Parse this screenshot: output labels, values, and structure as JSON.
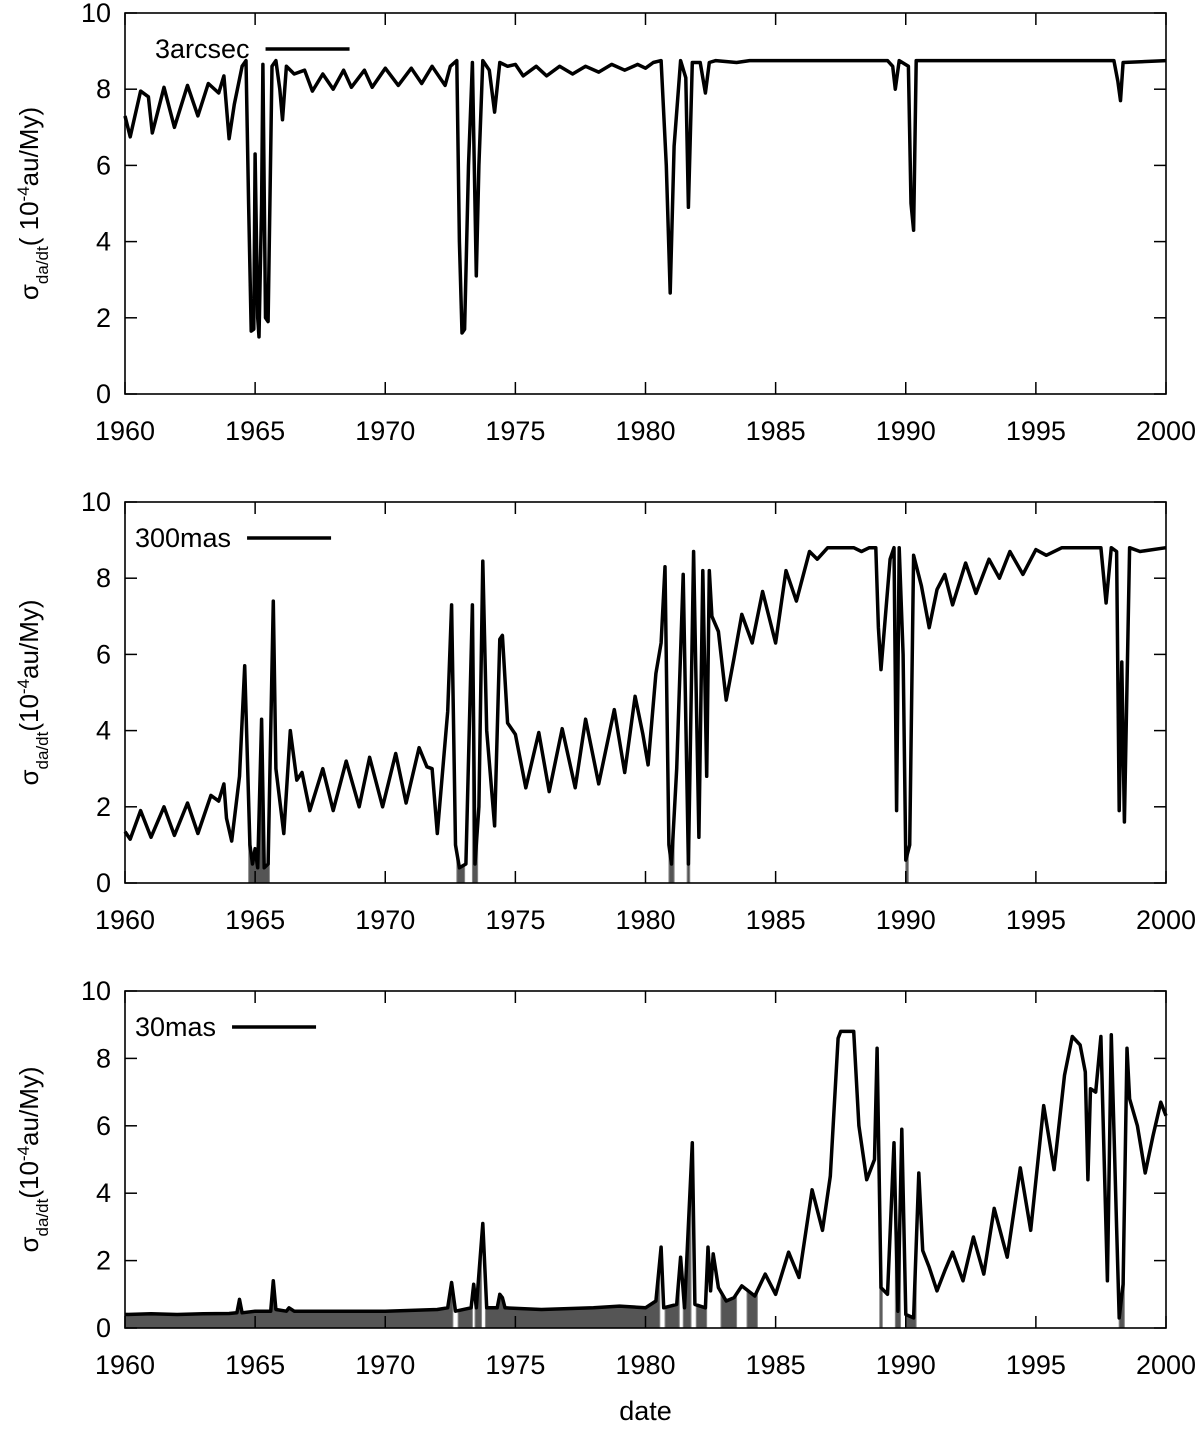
{
  "chart_data": [
    {
      "type": "line",
      "legend": "upper left",
      "ylabel": {
        "base": "σ",
        "sub": "da/dt",
        "mid": "( 10",
        "sup": "-4",
        "tail": "au/My)"
      },
      "xlim": [
        1960,
        2000
      ],
      "ylim": [
        0,
        10
      ],
      "xticks": [
        1960,
        1965,
        1970,
        1975,
        1980,
        1985,
        1990,
        1995,
        2000
      ],
      "yticks": [
        0,
        2,
        4,
        6,
        8,
        10
      ],
      "x": [
        1960,
        1960.2,
        1960.6,
        1960.9,
        1961.05,
        1961.5,
        1961.9,
        1962.4,
        1962.8,
        1963.2,
        1963.6,
        1963.8,
        1964.0,
        1964.2,
        1964.5,
        1964.65,
        1964.75,
        1964.85,
        1964.95,
        1965.0,
        1965.1,
        1965.15,
        1965.25,
        1965.3,
        1965.4,
        1965.5,
        1965.65,
        1965.8,
        1965.95,
        1966.05,
        1966.2,
        1966.5,
        1966.9,
        1967.2,
        1967.6,
        1968.0,
        1968.4,
        1968.7,
        1969.2,
        1969.5,
        1970.0,
        1970.5,
        1971.0,
        1971.4,
        1971.8,
        1972.1,
        1972.3,
        1972.5,
        1972.75,
        1972.85,
        1972.95,
        1973.05,
        1973.2,
        1973.35,
        1973.5,
        1973.6,
        1973.75,
        1974.0,
        1974.2,
        1974.4,
        1974.7,
        1975.0,
        1975.3,
        1975.8,
        1976.2,
        1976.7,
        1977.2,
        1977.7,
        1978.2,
        1978.7,
        1979.2,
        1979.7,
        1980.0,
        1980.3,
        1980.6,
        1980.8,
        1980.95,
        1981.1,
        1981.35,
        1981.55,
        1981.65,
        1981.8,
        1982.1,
        1982.3,
        1982.45,
        1982.7,
        1983.5,
        1984,
        1985,
        1989.3,
        1989.5,
        1989.6,
        1989.75,
        1990.1,
        1990.2,
        1990.3,
        1990.4,
        1991,
        1998.0,
        1998.15,
        1998.25,
        1998.35,
        2000
      ],
      "series": [
        {
          "name": "3arcsec",
          "color": "#000000",
          "values": [
            7.3,
            6.75,
            7.95,
            7.8,
            6.85,
            8.05,
            7.0,
            8.1,
            7.3,
            8.15,
            7.9,
            8.35,
            6.7,
            7.6,
            8.6,
            8.75,
            5.0,
            1.65,
            1.7,
            6.3,
            2.0,
            1.5,
            5.0,
            8.65,
            2.0,
            1.9,
            8.6,
            8.75,
            8.0,
            7.2,
            8.6,
            8.4,
            8.5,
            7.95,
            8.4,
            8.0,
            8.5,
            8.05,
            8.5,
            8.05,
            8.55,
            8.1,
            8.55,
            8.15,
            8.6,
            8.3,
            8.1,
            8.6,
            8.75,
            4.0,
            1.6,
            1.7,
            6.0,
            8.7,
            3.1,
            6.0,
            8.75,
            8.5,
            7.4,
            8.7,
            8.6,
            8.65,
            8.35,
            8.6,
            8.35,
            8.6,
            8.4,
            8.6,
            8.45,
            8.65,
            8.5,
            8.65,
            8.55,
            8.7,
            8.75,
            6.0,
            2.65,
            6.5,
            8.75,
            8.3,
            4.9,
            8.7,
            8.7,
            7.9,
            8.7,
            8.75,
            8.7,
            8.75,
            8.75,
            8.75,
            8.6,
            8.0,
            8.75,
            8.6,
            5.0,
            4.3,
            8.75,
            8.75,
            8.75,
            8.2,
            7.7,
            8.7,
            8.75
          ]
        }
      ]
    },
    {
      "type": "line",
      "legend": "upper left",
      "ylabel": {
        "base": "σ",
        "sub": "da/dt",
        "mid": "(10",
        "sup": "-4",
        "tail": "au/My)"
      },
      "xlim": [
        1960,
        2000
      ],
      "ylim": [
        0,
        10
      ],
      "xticks": [
        1960,
        1965,
        1970,
        1975,
        1980,
        1985,
        1990,
        1995,
        2000
      ],
      "yticks": [
        0,
        2,
        4,
        6,
        8,
        10
      ],
      "x": [
        1960,
        1960.2,
        1960.6,
        1961.0,
        1961.5,
        1961.9,
        1962.4,
        1962.8,
        1963.3,
        1963.6,
        1963.8,
        1963.9,
        1964.1,
        1964.4,
        1964.6,
        1964.8,
        1964.9,
        1965.0,
        1965.1,
        1965.25,
        1965.35,
        1965.5,
        1965.7,
        1965.8,
        1966.1,
        1966.35,
        1966.6,
        1966.8,
        1967.1,
        1967.6,
        1968.0,
        1968.5,
        1969.0,
        1969.4,
        1969.9,
        1970.4,
        1970.8,
        1971.3,
        1971.6,
        1971.8,
        1972.0,
        1972.4,
        1972.55,
        1972.7,
        1972.85,
        1973.1,
        1973.35,
        1973.45,
        1973.6,
        1973.75,
        1973.9,
        1974.2,
        1974.4,
        1974.5,
        1974.7,
        1975.0,
        1975.4,
        1975.9,
        1976.3,
        1976.8,
        1977.3,
        1977.7,
        1978.2,
        1978.8,
        1979.2,
        1979.6,
        1979.9,
        1980.1,
        1980.4,
        1980.6,
        1980.75,
        1980.9,
        1981.0,
        1981.2,
        1981.45,
        1981.65,
        1981.85,
        1982.05,
        1982.2,
        1982.35,
        1982.45,
        1982.55,
        1982.8,
        1983.0,
        1983.1,
        1983.4,
        1983.7,
        1984.1,
        1984.5,
        1985.0,
        1985.4,
        1985.8,
        1986.3,
        1986.6,
        1987.0,
        1988.0,
        1988.3,
        1988.6,
        1988.85,
        1988.95,
        1989.05,
        1989.4,
        1989.55,
        1989.65,
        1989.75,
        1989.9,
        1990.0,
        1990.15,
        1990.3,
        1990.6,
        1990.9,
        1991.2,
        1991.5,
        1991.8,
        1992.3,
        1992.7,
        1993.2,
        1993.6,
        1994.0,
        1994.5,
        1995.0,
        1995.4,
        1996.0,
        1997.5,
        1997.7,
        1997.9,
        1998.1,
        1998.2,
        1998.3,
        1998.4,
        1998.6,
        1999,
        2000
      ],
      "series": [
        {
          "name": "300mas",
          "color": "#000000",
          "values": [
            1.35,
            1.15,
            1.9,
            1.2,
            2.0,
            1.25,
            2.1,
            1.3,
            2.3,
            2.15,
            2.6,
            1.7,
            1.1,
            2.8,
            5.7,
            1.0,
            0.5,
            0.9,
            0.4,
            4.3,
            0.4,
            0.5,
            7.4,
            3.0,
            1.3,
            4.0,
            2.7,
            2.9,
            1.9,
            3.0,
            1.9,
            3.2,
            2.0,
            3.3,
            2.0,
            3.4,
            2.1,
            3.55,
            3.05,
            3.0,
            1.3,
            4.5,
            7.3,
            1.0,
            0.4,
            0.5,
            7.3,
            0.5,
            2.0,
            8.45,
            4.0,
            1.5,
            6.4,
            6.5,
            4.2,
            3.9,
            2.5,
            3.95,
            2.4,
            4.05,
            2.5,
            4.3,
            2.6,
            4.55,
            2.9,
            4.9,
            3.9,
            3.1,
            5.5,
            6.3,
            8.3,
            1.0,
            0.5,
            3.0,
            8.1,
            0.5,
            8.7,
            1.2,
            8.2,
            2.8,
            8.2,
            7.0,
            6.6,
            5.4,
            4.8,
            5.9,
            7.05,
            6.3,
            7.65,
            6.3,
            8.2,
            7.4,
            8.7,
            8.5,
            8.8,
            8.8,
            8.7,
            8.8,
            8.8,
            6.7,
            5.6,
            8.5,
            8.8,
            1.9,
            8.8,
            6.0,
            0.6,
            1.0,
            8.6,
            7.8,
            6.7,
            7.7,
            8.1,
            7.3,
            8.4,
            7.6,
            8.5,
            8.0,
            8.7,
            8.1,
            8.75,
            8.6,
            8.8,
            8.8,
            7.35,
            8.8,
            8.7,
            1.9,
            5.8,
            1.6,
            8.8,
            8.7,
            8.8
          ]
        }
      ],
      "shaded": [
        [
          1964.75,
          1965.55
        ],
        [
          1972.75,
          1973.05
        ],
        [
          1973.35,
          1973.55
        ],
        [
          1980.9,
          1981.1
        ],
        [
          1981.6,
          1981.7
        ],
        [
          1990.0,
          1990.1
        ]
      ]
    },
    {
      "type": "line",
      "legend": "upper left",
      "xlabel": "date",
      "ylabel": {
        "base": "σ",
        "sub": "da/dt",
        "mid": "(10",
        "sup": "-4",
        "tail": "au/My)"
      },
      "xlim": [
        1960,
        2000
      ],
      "ylim": [
        0,
        10
      ],
      "xticks": [
        1960,
        1965,
        1970,
        1975,
        1980,
        1985,
        1990,
        1995,
        2000
      ],
      "yticks": [
        0,
        2,
        4,
        6,
        8,
        10
      ],
      "x": [
        1960,
        1961,
        1962,
        1963,
        1964,
        1964.3,
        1964.4,
        1964.5,
        1965,
        1965.6,
        1965.7,
        1965.8,
        1966.2,
        1966.3,
        1966.5,
        1968,
        1970,
        1972,
        1972.4,
        1972.55,
        1972.7,
        1973.3,
        1973.4,
        1973.5,
        1973.75,
        1973.9,
        1974.3,
        1974.4,
        1974.5,
        1974.6,
        1976,
        1978,
        1979,
        1980,
        1980.4,
        1980.6,
        1980.7,
        1981.2,
        1981.35,
        1981.5,
        1981.8,
        1981.9,
        1982.3,
        1982.4,
        1982.5,
        1982.6,
        1982.8,
        1983.1,
        1983.4,
        1983.7,
        1984.2,
        1984.6,
        1985,
        1985.5,
        1985.9,
        1986.4,
        1986.8,
        1987.1,
        1987.4,
        1987.5,
        1988.0,
        1988.2,
        1988.5,
        1988.8,
        1988.9,
        1989.05,
        1989.3,
        1989.55,
        1989.7,
        1989.85,
        1990.0,
        1990.3,
        1990.5,
        1990.65,
        1990.9,
        1991.2,
        1991.5,
        1991.8,
        1992.2,
        1992.6,
        1993.0,
        1993.4,
        1993.9,
        1994.4,
        1994.8,
        1995.3,
        1995.7,
        1996.1,
        1996.4,
        1996.7,
        1996.9,
        1997.0,
        1997.1,
        1997.3,
        1997.5,
        1997.75,
        1997.9,
        1998.1,
        1998.2,
        1998.35,
        1998.5,
        1998.6,
        1998.9,
        1999.2,
        1999.5,
        1999.8,
        2000
      ],
      "series": [
        {
          "name": "30mas",
          "color": "#000000",
          "values": [
            0.4,
            0.42,
            0.4,
            0.42,
            0.43,
            0.45,
            0.85,
            0.45,
            0.5,
            0.5,
            1.4,
            0.55,
            0.5,
            0.6,
            0.5,
            0.5,
            0.5,
            0.55,
            0.6,
            1.35,
            0.5,
            0.6,
            1.3,
            0.6,
            3.1,
            0.6,
            0.6,
            1.0,
            0.9,
            0.6,
            0.55,
            0.6,
            0.65,
            0.6,
            0.8,
            2.4,
            0.6,
            0.7,
            2.1,
            0.6,
            5.5,
            0.7,
            0.6,
            2.4,
            1.1,
            2.2,
            1.2,
            0.8,
            0.9,
            1.25,
            0.95,
            1.6,
            1.0,
            2.25,
            1.5,
            4.1,
            2.9,
            4.5,
            8.6,
            8.8,
            8.8,
            6.0,
            4.4,
            5.0,
            8.3,
            1.2,
            1.0,
            5.5,
            0.5,
            5.9,
            0.4,
            0.3,
            4.6,
            2.3,
            1.8,
            1.1,
            1.7,
            2.25,
            1.4,
            2.7,
            1.6,
            3.55,
            2.1,
            4.75,
            2.9,
            6.6,
            4.7,
            7.5,
            8.65,
            8.4,
            7.6,
            4.4,
            7.1,
            7.0,
            8.65,
            1.4,
            8.7,
            3.0,
            0.3,
            1.3,
            8.3,
            6.8,
            6.0,
            4.6,
            5.7,
            6.7,
            6.3
          ]
        }
      ],
      "shaded": [
        [
          1960,
          1972.6
        ],
        [
          1972.8,
          1973.35
        ],
        [
          1973.45,
          1973.7
        ],
        [
          1973.85,
          1980.55
        ],
        [
          1980.75,
          1981.3
        ],
        [
          1981.45,
          1981.75
        ],
        [
          1981.95,
          1982.35
        ],
        [
          1982.9,
          1983.5
        ],
        [
          1983.9,
          1984.3
        ],
        [
          1989.0,
          1989.1
        ],
        [
          1989.6,
          1989.8
        ],
        [
          1990.0,
          1990.4
        ],
        [
          1998.2,
          1998.4
        ]
      ]
    }
  ]
}
